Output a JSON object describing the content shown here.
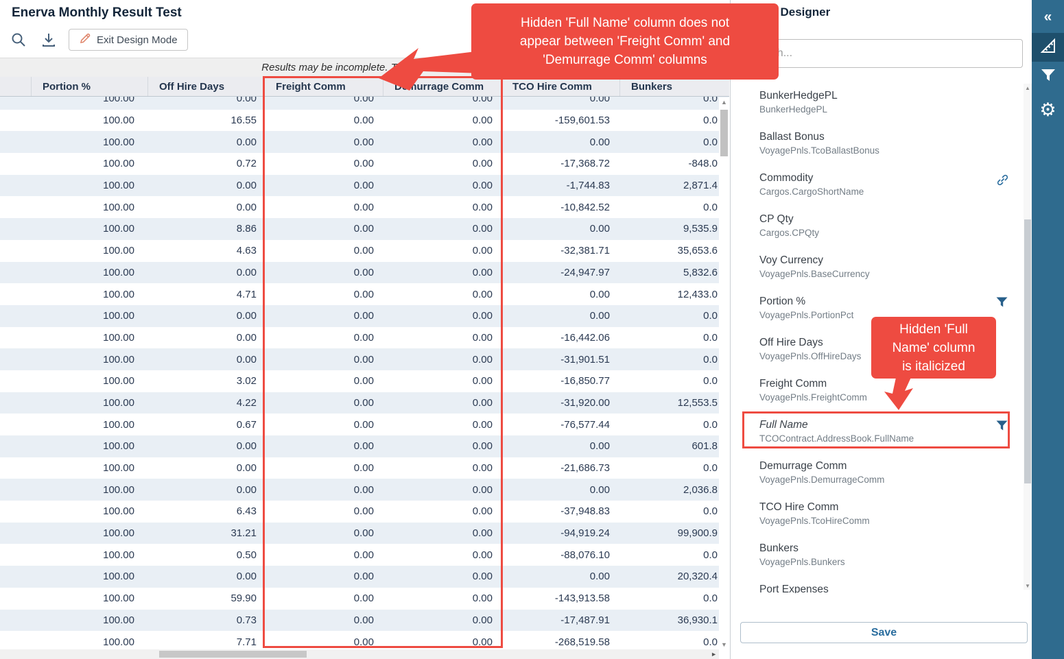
{
  "window": {
    "title": "Enerva Monthly Result Test"
  },
  "toolbar": {
    "icons": [
      "search-icon",
      "download-icon"
    ],
    "exit_design_mode_label": "Exit Design Mode"
  },
  "banner": {
    "text": "Results may be incomplete. To see all results"
  },
  "table": {
    "columns": [
      "",
      "Portion %",
      "Off Hire Days",
      "Freight Comm",
      "Demurrage Comm",
      "TCO Hire Comm",
      "Bunkers"
    ],
    "rows": [
      [
        "100.00",
        "0.00",
        "0.00",
        "0.00",
        "0.00",
        "0.0"
      ],
      [
        "100.00",
        "16.55",
        "0.00",
        "0.00",
        "-159,601.53",
        "0.0"
      ],
      [
        "100.00",
        "0.00",
        "0.00",
        "0.00",
        "0.00",
        "0.0"
      ],
      [
        "100.00",
        "0.72",
        "0.00",
        "0.00",
        "-17,368.72",
        "-848.0"
      ],
      [
        "100.00",
        "0.00",
        "0.00",
        "0.00",
        "-1,744.83",
        "2,871.4"
      ],
      [
        "100.00",
        "0.00",
        "0.00",
        "0.00",
        "-10,842.52",
        "0.0"
      ],
      [
        "100.00",
        "8.86",
        "0.00",
        "0.00",
        "0.00",
        "9,535.9"
      ],
      [
        "100.00",
        "4.63",
        "0.00",
        "0.00",
        "-32,381.71",
        "35,653.6"
      ],
      [
        "100.00",
        "0.00",
        "0.00",
        "0.00",
        "-24,947.97",
        "5,832.6"
      ],
      [
        "100.00",
        "4.71",
        "0.00",
        "0.00",
        "0.00",
        "12,433.0"
      ],
      [
        "100.00",
        "0.00",
        "0.00",
        "0.00",
        "0.00",
        "0.0"
      ],
      [
        "100.00",
        "0.00",
        "0.00",
        "0.00",
        "-16,442.06",
        "0.0"
      ],
      [
        "100.00",
        "0.00",
        "0.00",
        "0.00",
        "-31,901.51",
        "0.0"
      ],
      [
        "100.00",
        "3.02",
        "0.00",
        "0.00",
        "-16,850.77",
        "0.0"
      ],
      [
        "100.00",
        "4.22",
        "0.00",
        "0.00",
        "-31,920.00",
        "12,553.5"
      ],
      [
        "100.00",
        "0.67",
        "0.00",
        "0.00",
        "-76,577.44",
        "0.0"
      ],
      [
        "100.00",
        "0.00",
        "0.00",
        "0.00",
        "0.00",
        "601.8"
      ],
      [
        "100.00",
        "0.00",
        "0.00",
        "0.00",
        "-21,686.73",
        "0.0"
      ],
      [
        "100.00",
        "0.00",
        "0.00",
        "0.00",
        "0.00",
        "2,036.8"
      ],
      [
        "100.00",
        "6.43",
        "0.00",
        "0.00",
        "-37,948.83",
        "0.0"
      ],
      [
        "100.00",
        "31.21",
        "0.00",
        "0.00",
        "-94,919.24",
        "99,900.9"
      ],
      [
        "100.00",
        "0.50",
        "0.00",
        "0.00",
        "-88,076.10",
        "0.0"
      ],
      [
        "100.00",
        "0.00",
        "0.00",
        "0.00",
        "0.00",
        "20,320.4"
      ],
      [
        "100.00",
        "59.90",
        "0.00",
        "0.00",
        "-143,913.58",
        "0.0"
      ],
      [
        "100.00",
        "0.73",
        "0.00",
        "0.00",
        "-17,487.91",
        "36,930.1"
      ],
      [
        "100.00",
        "7.71",
        "0.00",
        "0.00",
        "-268,519.58",
        "0.0"
      ]
    ]
  },
  "designer": {
    "title": "Report Designer",
    "search_placeholder": "Search...",
    "fields": [
      {
        "label": "BunkerHedgePL",
        "binding": "BunkerHedgePL"
      },
      {
        "label": "Ballast Bonus",
        "binding": "VoyagePnls.TcoBallastBonus"
      },
      {
        "label": "Commodity",
        "binding": "Cargos.CargoShortName",
        "icon": "link"
      },
      {
        "label": "CP Qty",
        "binding": "Cargos.CPQty"
      },
      {
        "label": "Voy Currency",
        "binding": "VoyagePnls.BaseCurrency"
      },
      {
        "label": "Portion %",
        "binding": "VoyagePnls.PortionPct",
        "icon": "filter"
      },
      {
        "label": "Off Hire Days",
        "binding": "VoyagePnls.OffHireDays"
      },
      {
        "label": "Freight Comm",
        "binding": "VoyagePnls.FreightComm"
      },
      {
        "label": "Full Name",
        "binding": "TCOContract.AddressBook.FullName",
        "icon": "filter",
        "italic": true,
        "highlighted": true
      },
      {
        "label": "Demurrage Comm",
        "binding": "VoyagePnls.DemurrageComm"
      },
      {
        "label": "TCO Hire Comm",
        "binding": "VoyagePnls.TcoHireComm"
      },
      {
        "label": "Bunkers",
        "binding": "VoyagePnls.Bunkers"
      },
      {
        "label": "Port Expenses",
        "binding": ""
      }
    ],
    "save_label": "Save"
  },
  "sidebar": {
    "items": [
      "collapse-panel",
      "design-tool",
      "filter-tool",
      "settings"
    ]
  },
  "annotations": {
    "callout_top_lines": [
      "Hidden 'Full Name' column does not",
      "appear between 'Freight Comm' and",
      "'Demurrage Comm' columns"
    ],
    "callout_side_lines": [
      "Hidden 'Full",
      "Name' column",
      "is italicized"
    ]
  },
  "colors": {
    "annotation_red": "#ee4b41",
    "toolbar_blue": "#2f6b8e",
    "toolbar_selected": "#1e4f6c",
    "link_blue": "#2a6d9e",
    "table_stripe": "#e9eff5",
    "header_text": "#24364e"
  }
}
